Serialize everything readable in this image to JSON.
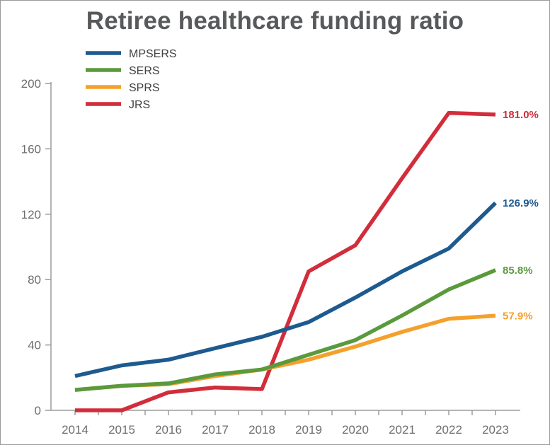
{
  "chart_data": {
    "type": "line",
    "title": "Retiree healthcare funding ratio",
    "xlabel": "",
    "ylabel": "",
    "x": [
      "2014",
      "2015",
      "2016",
      "2017",
      "2018",
      "2019",
      "2020",
      "2021",
      "2022",
      "2023"
    ],
    "ylim": [
      0,
      200
    ],
    "yticks": [
      "0",
      "40",
      "80",
      "120",
      "160",
      "200"
    ],
    "grid": false,
    "legend_position": "top-left",
    "series": [
      {
        "name": "MPSERS",
        "color": "#1d5a8f",
        "values": [
          21,
          27.5,
          31,
          38,
          45,
          54,
          69,
          85,
          99,
          126.9
        ],
        "end_label": "126.9%"
      },
      {
        "name": "SERS",
        "color": "#5a9a3c",
        "values": [
          12.5,
          15,
          16.5,
          22,
          25,
          34,
          43,
          58,
          74,
          85.8
        ],
        "end_label": "85.8%"
      },
      {
        "name": "SPRS",
        "color": "#f5a02c",
        "values": [
          12.5,
          15,
          16,
          21,
          25,
          31,
          39,
          48,
          56,
          57.9
        ],
        "end_label": "57.9%"
      },
      {
        "name": "JRS",
        "color": "#d22d3b",
        "values": [
          0,
          0,
          11,
          14,
          13,
          85,
          101,
          142,
          182,
          181.0
        ],
        "end_label": "181.0%"
      }
    ]
  }
}
